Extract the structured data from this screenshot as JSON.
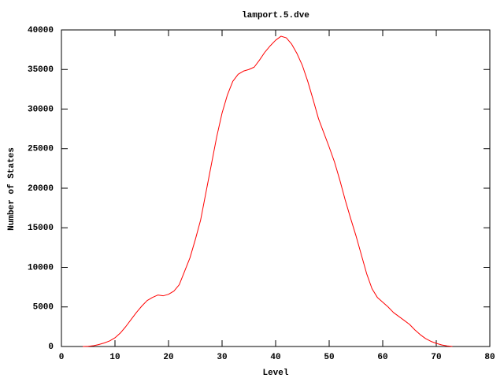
{
  "chart_data": {
    "type": "line",
    "title": "lamport.5.dve",
    "x_label": "Level",
    "y_label": "Number of States",
    "x": [
      4,
      5,
      6,
      7,
      8,
      9,
      10,
      11,
      12,
      13,
      14,
      15,
      16,
      17,
      18,
      19,
      20,
      21,
      22,
      23,
      24,
      25,
      26,
      27,
      28,
      29,
      30,
      31,
      32,
      33,
      34,
      35,
      36,
      37,
      38,
      39,
      40,
      41,
      42,
      43,
      44,
      45,
      46,
      47,
      48,
      49,
      50,
      51,
      52,
      53,
      54,
      55,
      56,
      57,
      58,
      59,
      60,
      61,
      62,
      63,
      64,
      65,
      66,
      67,
      68,
      69,
      70,
      71,
      72,
      73
    ],
    "values": [
      0,
      30,
      100,
      250,
      450,
      700,
      1100,
      1700,
      2500,
      3400,
      4300,
      5100,
      5800,
      6200,
      6500,
      6400,
      6600,
      7000,
      7800,
      9500,
      11200,
      13500,
      16000,
      19500,
      23000,
      26500,
      29500,
      31800,
      33500,
      34400,
      34800,
      35000,
      35300,
      36200,
      37200,
      38000,
      38700,
      39200,
      39000,
      38200,
      37000,
      35500,
      33500,
      31200,
      28800,
      27000,
      25200,
      23300,
      21000,
      18500,
      16200,
      14000,
      11600,
      9200,
      7300,
      6200,
      5600,
      5000,
      4300,
      3800,
      3300,
      2800,
      2100,
      1500,
      1000,
      650,
      400,
      200,
      80,
      10
    ],
    "color": "#ff0000",
    "xlim": [
      0,
      80
    ],
    "xticks": [
      0,
      10,
      20,
      30,
      40,
      50,
      60,
      70,
      80
    ],
    "ylim": [
      0,
      40000
    ],
    "yticks": [
      0,
      5000,
      10000,
      15000,
      20000,
      25000,
      30000,
      35000,
      40000
    ]
  }
}
